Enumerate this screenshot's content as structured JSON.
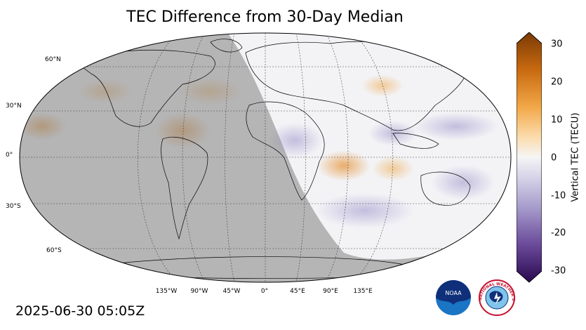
{
  "title": "TEC Difference from 30-Day Median",
  "timestamp": "2025-06-30 05:05Z",
  "lat_labels": [
    "60°N",
    "30°N",
    "0°",
    "30°S",
    "60°S"
  ],
  "lon_labels": [
    "135°W",
    "90°W",
    "45°W",
    "0°",
    "45°E",
    "90°E",
    "135°E"
  ],
  "colorbar": {
    "label": "Vertical TEC (TECU)",
    "ticks": [
      "30",
      "20",
      "10",
      "0",
      "-10",
      "-20",
      "-30"
    ],
    "range": [
      -30,
      30
    ]
  },
  "logos": {
    "noaa": "NOAA",
    "nws": "NATIONAL WEATHER SERVICE"
  },
  "colors": {
    "night_shade": "#9c9c9c",
    "positive": "#e08a2a",
    "negative": "#6a5a9a",
    "neutral": "#f4f4f6"
  }
}
